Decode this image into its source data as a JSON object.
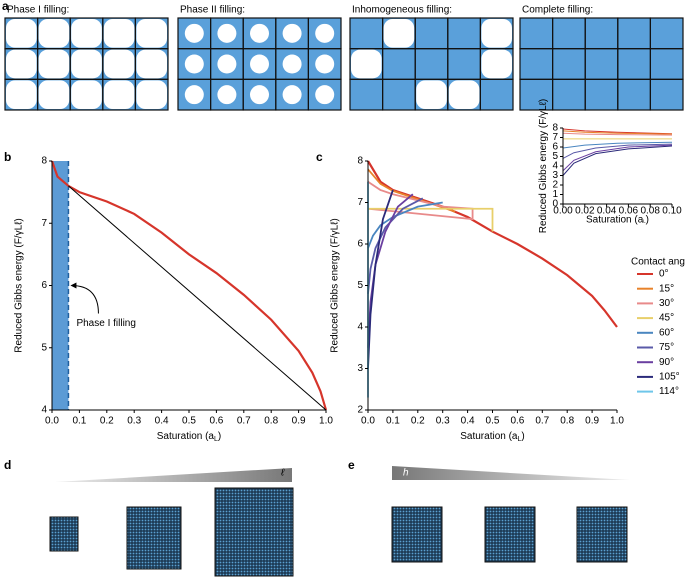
{
  "panel_a": {
    "label": "a",
    "titles": [
      "Phase I filling:",
      "Phase II filling:",
      "Inhomogeneous filling:",
      "Complete filling:"
    ]
  },
  "chart_data": [
    {
      "type": "line",
      "panel": "b",
      "xlim": [
        0,
        1
      ],
      "ylim": [
        4,
        8
      ],
      "xticks": [
        {
          "value": 0,
          "label": "0.0"
        },
        0.1,
        0.2,
        0.3,
        0.4,
        0.5,
        0.6,
        0.7,
        0.8,
        0.9,
        {
          "value": 1,
          "label": "1.0"
        }
      ],
      "yticks": [
        4,
        5,
        6,
        7,
        8
      ],
      "xlabel": [
        "Saturation (a",
        "L",
        ")"
      ],
      "ylabel": "Reduced Gibbs energy (F/γLℓ)",
      "shaded_region": {
        "x": [
          0,
          0.06
        ],
        "color": "#4a90d0"
      },
      "annotation": {
        "text": "Phase I filling",
        "x": 0.06,
        "y": 6
      },
      "series": [
        {
          "color": "#d6352b",
          "x": [
            0,
            0.02,
            0.06,
            0.1,
            0.2,
            0.3,
            0.4,
            0.5,
            0.6,
            0.7,
            0.8,
            0.9,
            0.95,
            0.98,
            1
          ],
          "values": [
            8,
            7.75,
            7.6,
            7.5,
            7.35,
            7.15,
            6.85,
            6.5,
            6.2,
            5.85,
            5.45,
            4.95,
            4.6,
            4.3,
            4
          ]
        },
        {
          "color": "#000000",
          "x": [
            0.06,
            1
          ],
          "values": [
            7.6,
            4
          ]
        }
      ]
    },
    {
      "type": "line",
      "panel": "c",
      "xlim": [
        0,
        1
      ],
      "ylim": [
        2,
        8
      ],
      "xticks": [
        {
          "value": 0,
          "label": "0.0"
        },
        0.1,
        0.2,
        0.3,
        0.4,
        0.5,
        0.6,
        0.7,
        0.8,
        0.9,
        {
          "value": 1,
          "label": "1.0"
        }
      ],
      "yticks": [
        2,
        3,
        4,
        5,
        6,
        7,
        8
      ],
      "xlabel": [
        "Saturation (a",
        "L",
        ")"
      ],
      "ylabel": "Reduced Gibbs energy (F/γLℓ)",
      "legend": {
        "title": "Contact angle:"
      },
      "series": [
        {
          "name": "0°",
          "color": "#d6352b",
          "x": [
            0,
            0.05,
            0.1,
            0.2,
            0.3,
            0.4,
            0.5,
            0.6,
            0.7,
            0.8,
            0.9,
            0.95,
            1
          ],
          "values": [
            8,
            7.5,
            7.3,
            7.1,
            6.9,
            6.65,
            6.3,
            6,
            5.65,
            5.25,
            4.75,
            4.4,
            4
          ]
        },
        {
          "name": "15°",
          "color": "#e8822a",
          "x": [
            0,
            0.05,
            0.1,
            0.2,
            0.3,
            0.35
          ],
          "values": [
            7.8,
            7.45,
            7.28,
            7.08,
            6.88,
            6.78
          ]
        },
        {
          "name": "30°",
          "color": "#e88a8a",
          "x": [
            0,
            0.05,
            0.1,
            0.2,
            0.3,
            0.42,
            0.42,
            0
          ],
          "values": [
            7.5,
            7.3,
            7.2,
            7.05,
            6.9,
            6.85,
            6.6,
            6.85
          ]
        },
        {
          "name": "45°",
          "color": "#e8cf6a",
          "x": [
            0,
            0.5,
            0.5
          ],
          "values": [
            6.85,
            6.85,
            6.3
          ]
        },
        {
          "name": "60°",
          "color": "#4a86c0",
          "x": [
            0,
            0.02,
            0.05,
            0.1,
            0.2,
            0.3
          ],
          "values": [
            5.9,
            6.2,
            6.45,
            6.65,
            6.9,
            7
          ]
        },
        {
          "name": "75°",
          "color": "#5a5aa8",
          "x": [
            0,
            0.01,
            0.03,
            0.07,
            0.14,
            0.22
          ],
          "values": [
            4.8,
            5.4,
            5.9,
            6.4,
            6.85,
            7.1
          ]
        },
        {
          "name": "90°",
          "color": "#6a3fa0",
          "x": [
            0,
            0.01,
            0.03,
            0.07,
            0.12,
            0.18
          ],
          "values": [
            3.5,
            4.6,
            5.5,
            6.3,
            6.9,
            7.2
          ]
        },
        {
          "name": "105°",
          "color": "#2b2a7a",
          "x": [
            0,
            0.01,
            0.03,
            0.06,
            0.1
          ],
          "values": [
            3,
            4.3,
            5.5,
            6.6,
            7.3
          ]
        },
        {
          "name": "114°",
          "color": "#6ec6ea",
          "x": [
            0,
            0,
            0
          ],
          "values": [
            2.3,
            4,
            7.5
          ]
        }
      ]
    },
    {
      "type": "line",
      "xlim": [
        0,
        0.1
      ],
      "ylim": [
        0,
        8
      ],
      "xticks": [
        {
          "value": 0,
          "label": "0.00"
        },
        {
          "value": 0.02,
          "label": "0.02"
        },
        {
          "value": 0.04,
          "label": "0.04"
        },
        {
          "value": 0.06,
          "label": "0.06"
        },
        {
          "value": 0.08,
          "label": "0.08"
        },
        {
          "value": 0.1,
          "label": "0.10"
        }
      ],
      "yticks": [
        0,
        1,
        2,
        3,
        4,
        5,
        6,
        7,
        8
      ],
      "xlabel": [
        "Saturation (a",
        "L",
        ")"
      ],
      "ylabel": "Reduced Gibbs energy (F/γLℓ)",
      "series": [
        {
          "color": "#d6352b",
          "x": [
            0,
            0.02,
            0.05,
            0.1
          ],
          "values": [
            7.9,
            7.7,
            7.55,
            7.4
          ]
        },
        {
          "color": "#e8822a",
          "x": [
            0,
            0.02,
            0.05,
            0.1
          ],
          "values": [
            7.7,
            7.55,
            7.45,
            7.35
          ]
        },
        {
          "color": "#e88a8a",
          "x": [
            0,
            0.02,
            0.05,
            0.1
          ],
          "values": [
            7.45,
            7.35,
            7.3,
            7.25
          ]
        },
        {
          "color": "#e8cf6a",
          "x": [
            0,
            0.1
          ],
          "values": [
            6.85,
            6.85
          ]
        },
        {
          "color": "#4a86c0",
          "x": [
            0,
            0.02,
            0.05,
            0.1
          ],
          "values": [
            5.9,
            6.2,
            6.4,
            6.5
          ]
        },
        {
          "color": "#5a5aa8",
          "x": [
            0,
            0.01,
            0.03,
            0.06,
            0.1
          ],
          "values": [
            4.8,
            5.4,
            5.9,
            6.2,
            6.3
          ]
        },
        {
          "color": "#6a3fa0",
          "x": [
            0,
            0.01,
            0.03,
            0.06,
            0.1
          ],
          "values": [
            3.5,
            4.6,
            5.5,
            6,
            6.2
          ]
        },
        {
          "color": "#2b2a7a",
          "x": [
            0,
            0.01,
            0.03,
            0.06,
            0.1
          ],
          "values": [
            3,
            4.3,
            5.3,
            5.8,
            6.1
          ]
        }
      ]
    }
  ],
  "panel_d": {
    "label": "d",
    "scale_label": "ℓ"
  },
  "panel_e": {
    "label": "e",
    "scale_label": "h"
  }
}
